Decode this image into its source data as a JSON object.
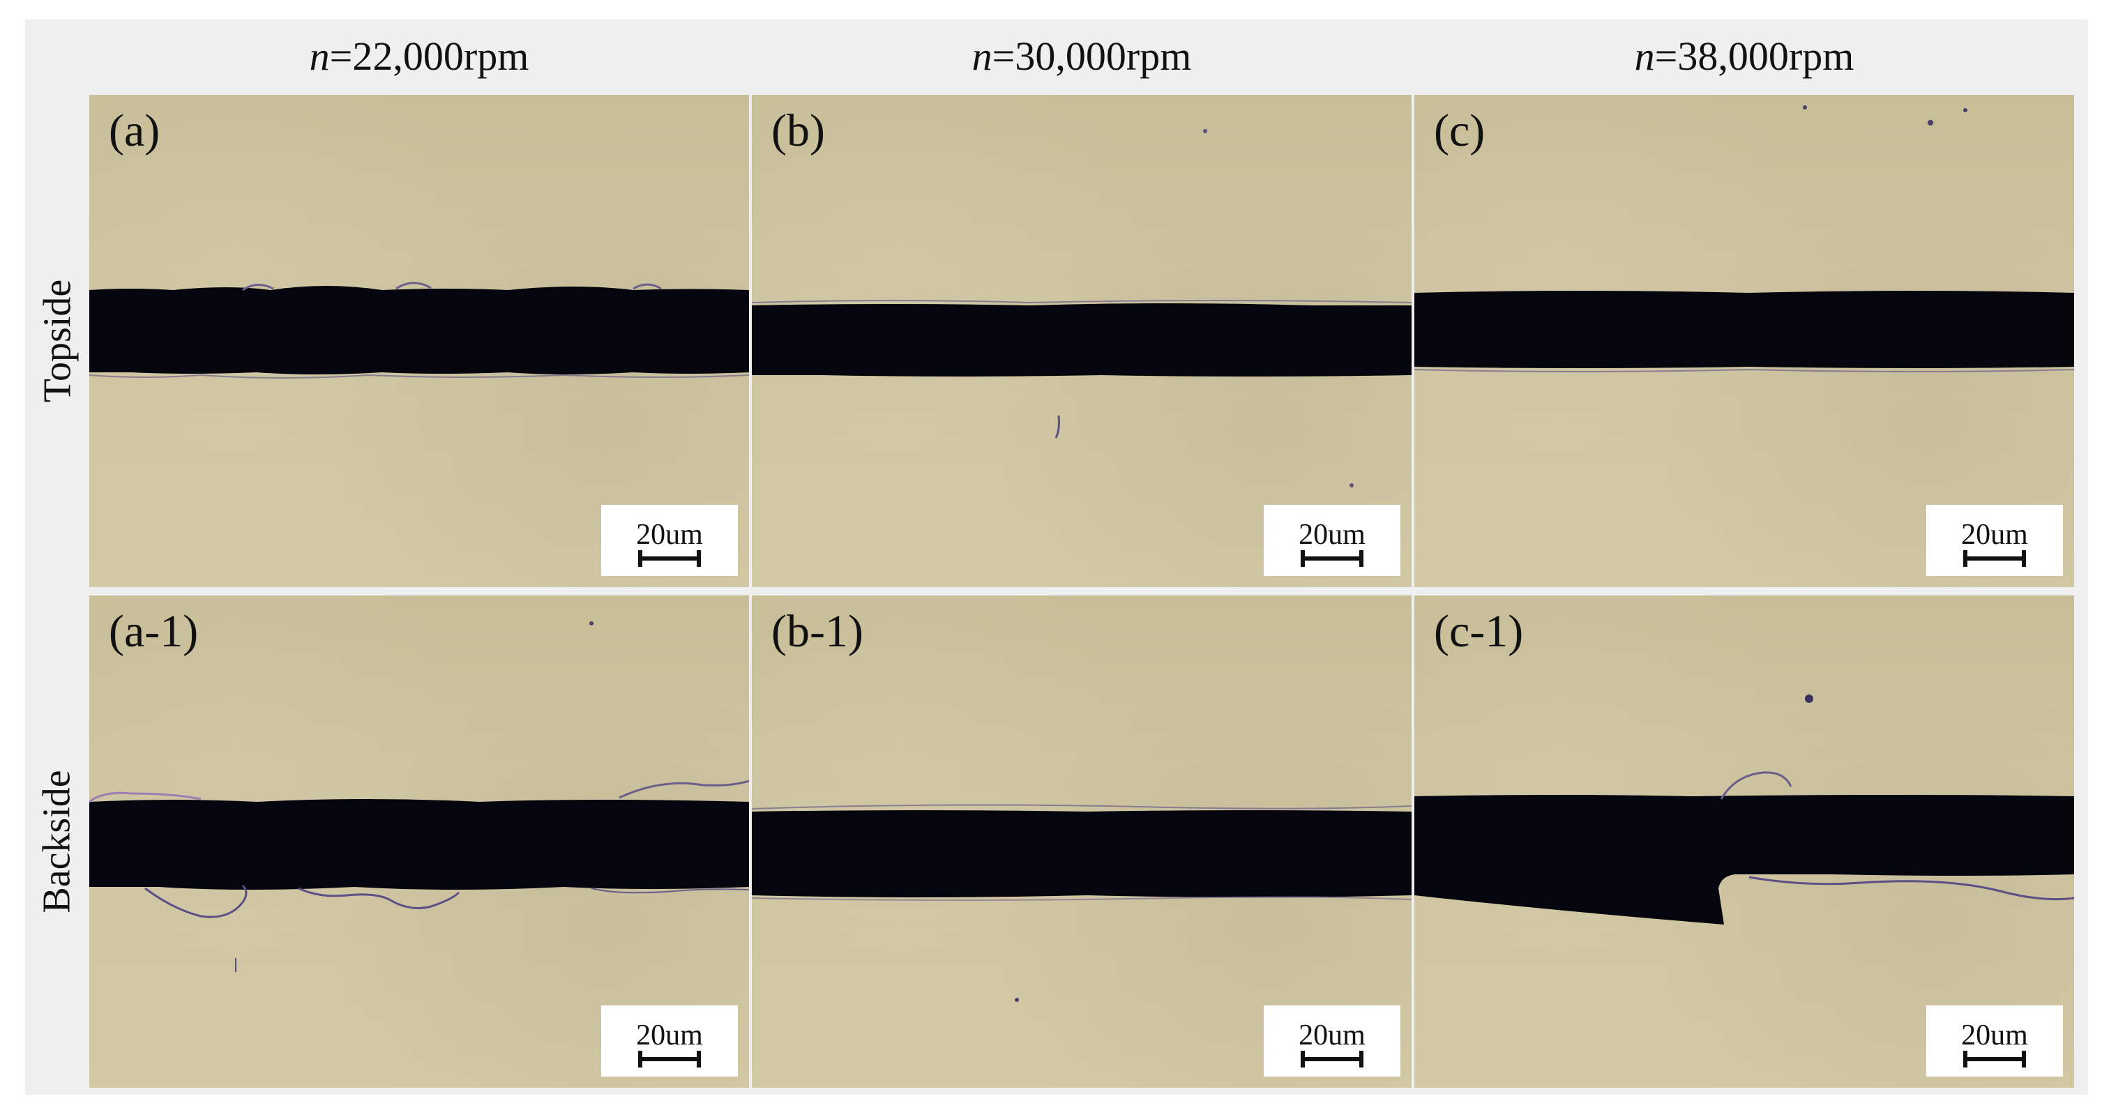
{
  "columns": [
    {
      "var": "n",
      "value": "=22,000rpm"
    },
    {
      "var": "n",
      "value": "=30,000rpm"
    },
    {
      "var": "n",
      "value": "=38,000rpm"
    }
  ],
  "rows": [
    "Topside",
    "Backside"
  ],
  "panels": {
    "a": {
      "label": "(a)"
    },
    "b": {
      "label": "(b)"
    },
    "c": {
      "label": "(c)"
    },
    "a1": {
      "label": "(a-1)"
    },
    "b1": {
      "label": "(b-1)"
    },
    "c1": {
      "label": "(c-1)"
    }
  },
  "scale_bar": "20um",
  "colors": {
    "background": "#efefef",
    "substrate": "#cdc39f",
    "groove": "#05060d",
    "chip_edge": "#6a5f8a"
  }
}
